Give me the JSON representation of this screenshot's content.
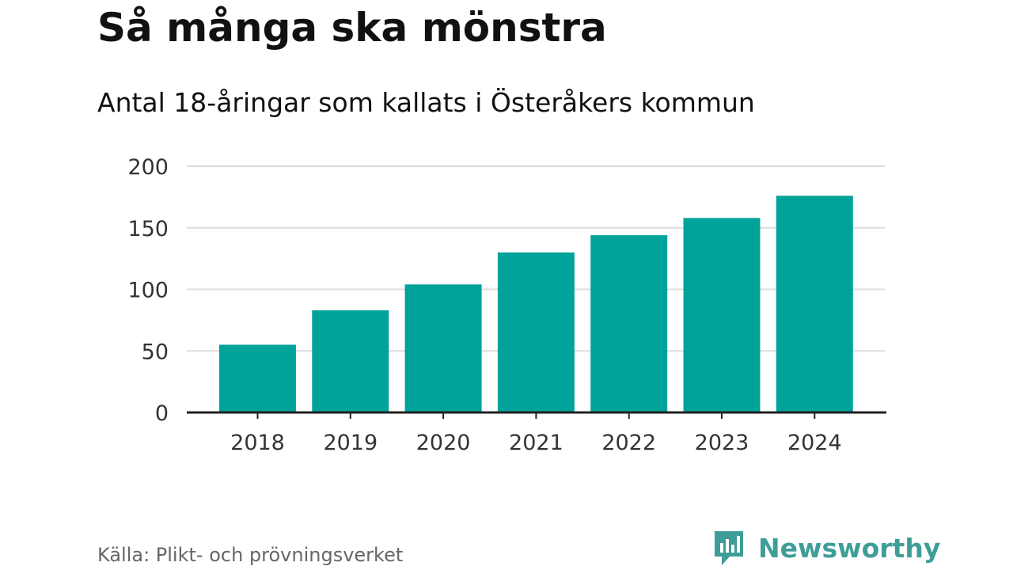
{
  "title": "Så många ska mönstra",
  "subtitle": "Antal 18-åringar som kallats i Österåkers kommun",
  "source": "Källa: Plikt- och prövningsverket",
  "brand": {
    "name": "Newsworthy",
    "icon": "newsworthy-logo-icon",
    "color": "#3e9e97"
  },
  "colors": {
    "bar": "#00a39a",
    "grid": "#dcdcdc",
    "axis": "#222222",
    "tick_text": "#333333"
  },
  "chart_data": {
    "type": "bar",
    "categories": [
      "2018",
      "2019",
      "2020",
      "2021",
      "2022",
      "2023",
      "2024"
    ],
    "values": [
      55,
      83,
      104,
      130,
      144,
      158,
      176
    ],
    "ylim": [
      0,
      200
    ],
    "yticks": [
      0,
      50,
      100,
      150,
      200
    ],
    "grid": true,
    "legend": "none"
  }
}
